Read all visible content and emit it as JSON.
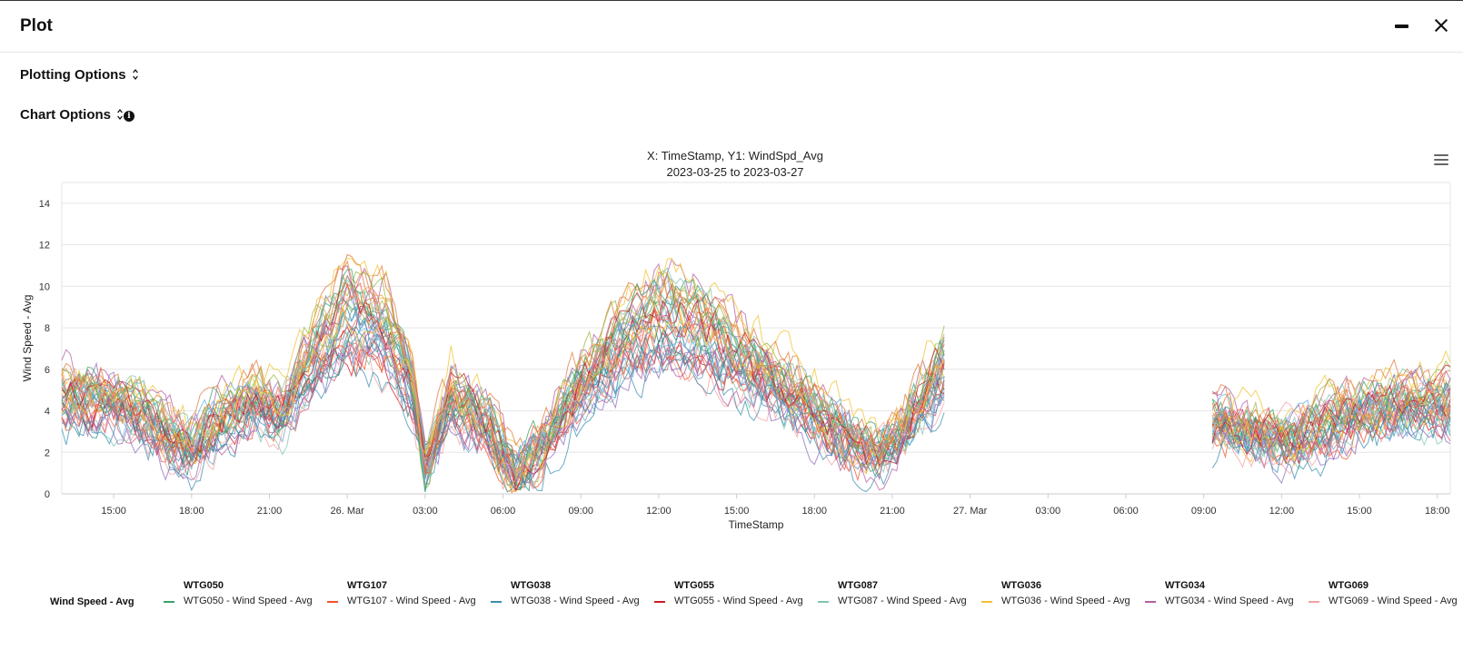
{
  "window": {
    "title": "Plot"
  },
  "options": {
    "plotting_label": "Plotting Options",
    "chart_label": "Chart Options",
    "chevron": "⌃⌄",
    "info_glyph": "i"
  },
  "chart_title_lines": [
    "X: TimeStamp, Y1: WindSpd_Avg",
    "2023-03-25 to 2023-03-27"
  ],
  "chart_data": {
    "type": "line",
    "title": "X: TimeStamp, Y1: WindSpd_Avg",
    "subtitle": "2023-03-25 to 2023-03-27",
    "xlabel": "TimeStamp",
    "ylabel": "Wind Speed - Avg",
    "xlim": [
      "2023-03-25 13:00",
      "2023-03-27 18:30"
    ],
    "ylim": [
      0,
      15
    ],
    "x_ticks": [
      "15:00",
      "18:00",
      "21:00",
      "26. Mar",
      "03:00",
      "06:00",
      "09:00",
      "12:00",
      "15:00",
      "18:00",
      "21:00",
      "27. Mar",
      "03:00",
      "06:00",
      "09:00",
      "12:00",
      "15:00",
      "18:00"
    ],
    "y_ticks": [
      0,
      2,
      4,
      6,
      8,
      10,
      12,
      14
    ],
    "grid": "horizontal",
    "legend_placement": "bottom",
    "legend_group": "Wind Speed - Avg",
    "gap": [
      "2023-03-26 23:00",
      "2023-03-27 09:10"
    ],
    "envelope": [
      {
        "time": "2023-03-25 13:00",
        "value": 4.8
      },
      {
        "time": "2023-03-25 15:00",
        "value": 4.6
      },
      {
        "time": "2023-03-25 16:30",
        "value": 3.4
      },
      {
        "time": "2023-03-25 18:00",
        "value": 2.3
      },
      {
        "time": "2023-03-25 19:00",
        "value": 3.5
      },
      {
        "time": "2023-03-25 20:30",
        "value": 4.6
      },
      {
        "time": "2023-03-25 21:30",
        "value": 4.0
      },
      {
        "time": "2023-03-25 23:00",
        "value": 7.0
      },
      {
        "time": "2023-03-26 00:00",
        "value": 8.8
      },
      {
        "time": "2023-03-26 01:30",
        "value": 8.0
      },
      {
        "time": "2023-03-26 02:30",
        "value": 5.2
      },
      {
        "time": "2023-03-26 03:00",
        "value": 1.3
      },
      {
        "time": "2023-03-26 04:00",
        "value": 4.7
      },
      {
        "time": "2023-03-26 05:30",
        "value": 3.2
      },
      {
        "time": "2023-03-26 06:30",
        "value": 0.8
      },
      {
        "time": "2023-03-26 07:30",
        "value": 2.5
      },
      {
        "time": "2023-03-26 09:00",
        "value": 5.2
      },
      {
        "time": "2023-03-26 10:00",
        "value": 6.6
      },
      {
        "time": "2023-03-26 12:00",
        "value": 8.6
      },
      {
        "time": "2023-03-26 14:00",
        "value": 7.8
      },
      {
        "time": "2023-03-26 16:00",
        "value": 5.9
      },
      {
        "time": "2023-03-26 18:00",
        "value": 4.0
      },
      {
        "time": "2023-03-26 19:30",
        "value": 2.7
      },
      {
        "time": "2023-03-26 20:30",
        "value": 2.0
      },
      {
        "time": "2023-03-26 21:30",
        "value": 3.4
      },
      {
        "time": "2023-03-26 23:00",
        "value": 6.0
      },
      {
        "time": "2023-03-27 09:10",
        "value": 3.6
      },
      {
        "time": "2023-03-27 11:00",
        "value": 3.0
      },
      {
        "time": "2023-03-27 12:30",
        "value": 2.6
      },
      {
        "time": "2023-03-27 14:00",
        "value": 3.6
      },
      {
        "time": "2023-03-27 16:00",
        "value": 4.3
      },
      {
        "time": "2023-03-27 18:30",
        "value": 4.4
      }
    ],
    "series": [
      {
        "name": "WTG050 - Wind Speed - Avg",
        "group": "WTG050",
        "color": "#3aa06a"
      },
      {
        "name": "WTG107 - Wind Speed - Avg",
        "group": "WTG107",
        "color": "#f0542a"
      },
      {
        "name": "WTG038 - Wind Speed - Avg",
        "group": "WTG038",
        "color": "#3b8fb0"
      },
      {
        "name": "WTG055 - Wind Speed - Avg",
        "group": "WTG055",
        "color": "#cc1a22"
      },
      {
        "name": "WTG087 - Wind Speed - Avg",
        "group": "WTG087",
        "color": "#7fc6b0"
      },
      {
        "name": "WTG036 - Wind Speed - Avg",
        "group": "WTG036",
        "color": "#f2c12e"
      },
      {
        "name": "WTG034 - Wind Speed - Avg",
        "group": "WTG034",
        "color": "#b45ea0"
      },
      {
        "name": "WTG069 - Wind Speed - Avg",
        "group": "WTG069",
        "color": "#f4a0a0"
      }
    ],
    "extra_colors": [
      "#6aa0c8",
      "#e07a3a",
      "#8e6bbf",
      "#2c8a8a",
      "#d35d6e",
      "#9bb840",
      "#e8a050",
      "#5ab0d8"
    ]
  }
}
